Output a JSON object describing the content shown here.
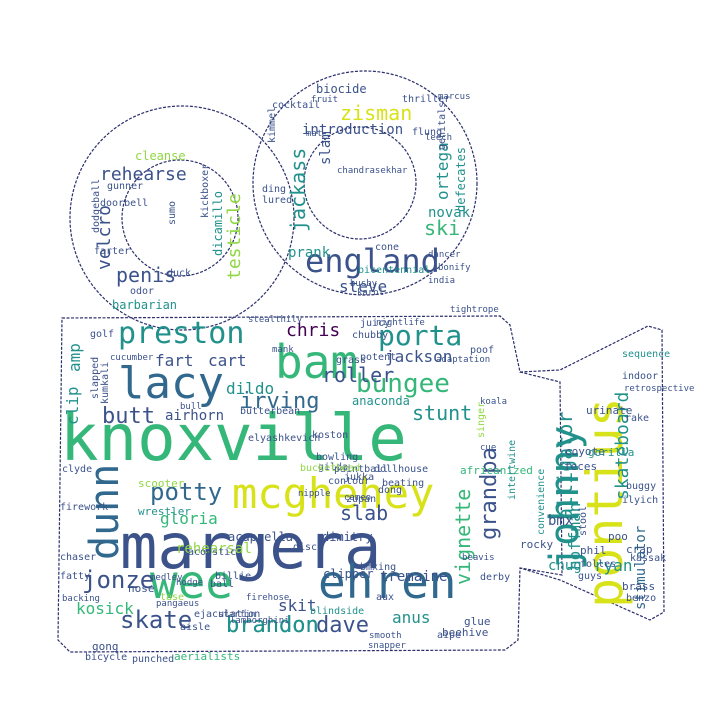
{
  "palette": {
    "purple": "#440154",
    "indigo": "#3b528b",
    "blue": "#31688e",
    "teal": "#21918c",
    "green": "#35b779",
    "lime": "#90d743",
    "yellow": "#d8e219",
    "outline": "#2b2f6b"
  },
  "shape": "movie-camera",
  "words": [
    {
      "text": "knoxville",
      "color": "green"
    },
    {
      "text": "margera",
      "color": "indigo"
    },
    {
      "text": "bam",
      "color": "green"
    },
    {
      "text": "wee",
      "color": "green"
    },
    {
      "text": "ehren",
      "color": "blue"
    },
    {
      "text": "mcghehey",
      "color": "yellow"
    },
    {
      "text": "pontius",
      "color": "yellow"
    },
    {
      "text": "johnny",
      "color": "teal"
    },
    {
      "text": "lacy",
      "color": "blue"
    },
    {
      "text": "dunn",
      "color": "blue"
    },
    {
      "text": "preston",
      "color": "teal"
    },
    {
      "text": "england",
      "color": "indigo"
    },
    {
      "text": "porta",
      "color": "teal"
    },
    {
      "text": "bungee",
      "color": "green"
    },
    {
      "text": "potty",
      "color": "blue"
    },
    {
      "text": "irving",
      "color": "blue"
    },
    {
      "text": "skate",
      "color": "indigo"
    },
    {
      "text": "brandon",
      "color": "teal"
    },
    {
      "text": "dave",
      "color": "indigo"
    },
    {
      "text": "jonze",
      "color": "indigo"
    },
    {
      "text": "zisman",
      "color": "yellow"
    },
    {
      "text": "jackass",
      "color": "teal"
    },
    {
      "text": "ski",
      "color": "green"
    },
    {
      "text": "steve",
      "color": "indigo"
    },
    {
      "text": "alligator",
      "color": "teal"
    },
    {
      "text": "grandpa",
      "color": "indigo"
    },
    {
      "text": "skateboard",
      "color": "teal"
    },
    {
      "text": "vignette",
      "color": "green"
    },
    {
      "text": "butt",
      "color": "indigo"
    },
    {
      "text": "chris",
      "color": "purple"
    },
    {
      "text": "fart",
      "color": "indigo"
    },
    {
      "text": "cart",
      "color": "indigo"
    },
    {
      "text": "rehearse",
      "color": "indigo"
    },
    {
      "text": "penis",
      "color": "indigo"
    },
    {
      "text": "velcro",
      "color": "indigo"
    },
    {
      "text": "testicle",
      "color": "lime"
    },
    {
      "text": "stunt",
      "color": "teal"
    },
    {
      "text": "slab",
      "color": "indigo"
    },
    {
      "text": "gloria",
      "color": "green"
    },
    {
      "text": "kosick",
      "color": "green"
    },
    {
      "text": "skit",
      "color": "indigo"
    },
    {
      "text": "hoffman",
      "color": "teal"
    },
    {
      "text": "stimulator",
      "color": "blue"
    },
    {
      "text": "bmx",
      "color": "indigo"
    },
    {
      "text": "roller",
      "color": "indigo"
    },
    {
      "text": "jackson",
      "color": "indigo"
    },
    {
      "text": "airhorn",
      "color": "indigo"
    },
    {
      "text": "dildo",
      "color": "teal"
    },
    {
      "text": "amp",
      "color": "teal"
    },
    {
      "text": "clip",
      "color": "teal"
    },
    {
      "text": "tremaine",
      "color": "indigo"
    },
    {
      "text": "anus",
      "color": "teal"
    },
    {
      "text": "rehearsal",
      "color": "lime"
    },
    {
      "text": "chug",
      "color": "teal"
    },
    {
      "text": "ryan",
      "color": "teal"
    },
    {
      "text": "prank",
      "color": "teal"
    },
    {
      "text": "novak",
      "color": "teal"
    },
    {
      "text": "ortega",
      "color": "teal"
    },
    {
      "text": "slam",
      "color": "indigo"
    },
    {
      "text": "introduction",
      "color": "indigo"
    },
    {
      "text": "biocide",
      "color": "indigo"
    },
    {
      "text": "thriller",
      "color": "indigo"
    },
    {
      "text": "defecates",
      "color": "teal"
    },
    {
      "text": "dicamillo",
      "color": "teal"
    },
    {
      "text": "barbarian",
      "color": "teal"
    },
    {
      "text": "cleanse",
      "color": "lime"
    },
    {
      "text": "anaconda",
      "color": "teal"
    },
    {
      "text": "acappella",
      "color": "indigo"
    },
    {
      "text": "dimitry",
      "color": "indigo"
    },
    {
      "text": "clipper",
      "color": "indigo"
    },
    {
      "text": "brandon",
      "color": "teal"
    },
    {
      "text": "coyote",
      "color": "indigo"
    },
    {
      "text": "feces",
      "color": "indigo"
    },
    {
      "text": "gorilla",
      "color": "teal"
    },
    {
      "text": "urinate",
      "color": "indigo"
    },
    {
      "text": "koala",
      "color": "indigo"
    },
    {
      "text": "sequence",
      "color": "teal"
    },
    {
      "text": "indoor",
      "color": "indigo"
    },
    {
      "text": "buggy",
      "color": "indigo"
    },
    {
      "text": "phil",
      "color": "indigo"
    },
    {
      "text": "rocky",
      "color": "indigo"
    },
    {
      "text": "beavis",
      "color": "indigo"
    },
    {
      "text": "derby",
      "color": "indigo"
    },
    {
      "text": "beehive",
      "color": "indigo"
    },
    {
      "text": "blindside",
      "color": "teal"
    },
    {
      "text": "aux",
      "color": "indigo"
    },
    {
      "text": "bmxing",
      "color": "indigo"
    },
    {
      "text": "zupan",
      "color": "indigo"
    },
    {
      "text": "jukka",
      "color": "indigo"
    },
    {
      "text": "gilda",
      "color": "indigo"
    },
    {
      "text": "koston",
      "color": "indigo"
    },
    {
      "text": "bowling",
      "color": "indigo"
    },
    {
      "text": "contour",
      "color": "indigo"
    },
    {
      "text": "nipple",
      "color": "indigo"
    },
    {
      "text": "cameo",
      "color": "indigo"
    },
    {
      "text": "dong",
      "color": "indigo"
    },
    {
      "text": "beating",
      "color": "indigo"
    },
    {
      "text": "paintball",
      "color": "indigo"
    },
    {
      "text": "dollhouse",
      "color": "indigo"
    },
    {
      "text": "africanized",
      "color": "green"
    },
    {
      "text": "buckethead",
      "color": "lime"
    },
    {
      "text": "scooter",
      "color": "lime"
    },
    {
      "text": "acoustic",
      "color": "indigo"
    },
    {
      "text": "wrestler",
      "color": "teal"
    },
    {
      "text": "firehose",
      "color": "indigo"
    },
    {
      "text": "disco",
      "color": "indigo"
    },
    {
      "text": "ball",
      "color": "indigo"
    },
    {
      "text": "billie",
      "color": "indigo"
    },
    {
      "text": "ejaculation",
      "color": "indigo"
    },
    {
      "text": "aisle",
      "color": "indigo"
    },
    {
      "text": "gong",
      "color": "indigo"
    },
    {
      "text": "bicycle",
      "color": "indigo"
    },
    {
      "text": "punched",
      "color": "indigo"
    },
    {
      "text": "aerialists",
      "color": "green"
    },
    {
      "text": "tase",
      "color": "lime"
    },
    {
      "text": "hose",
      "color": "indigo"
    },
    {
      "text": "fatty",
      "color": "indigo"
    },
    {
      "text": "backing",
      "color": "indigo"
    },
    {
      "text": "chaser",
      "color": "indigo"
    },
    {
      "text": "firework",
      "color": "indigo"
    },
    {
      "text": "clyde",
      "color": "indigo"
    },
    {
      "text": "golf",
      "color": "indigo"
    },
    {
      "text": "cucumber",
      "color": "indigo"
    },
    {
      "text": "elyashkevich",
      "color": "indigo"
    },
    {
      "text": "butterbean",
      "color": "indigo"
    },
    {
      "text": "bull",
      "color": "indigo"
    },
    {
      "text": "kumkali",
      "color": "indigo"
    },
    {
      "text": "slapped",
      "color": "indigo"
    },
    {
      "text": "chubby",
      "color": "indigo"
    },
    {
      "text": "grass",
      "color": "indigo"
    },
    {
      "text": "adaptation",
      "color": "indigo"
    },
    {
      "text": "poof",
      "color": "indigo"
    },
    {
      "text": "juicy",
      "color": "indigo"
    },
    {
      "text": "nightlife",
      "color": "indigo"
    },
    {
      "text": "sumo",
      "color": "indigo"
    },
    {
      "text": "duck",
      "color": "indigo"
    },
    {
      "text": "odor",
      "color": "indigo"
    },
    {
      "text": "farter",
      "color": "indigo"
    },
    {
      "text": "dodgeball",
      "color": "indigo"
    },
    {
      "text": "gunner",
      "color": "indigo"
    },
    {
      "text": "doorbell",
      "color": "indigo"
    },
    {
      "text": "kickboxer",
      "color": "indigo"
    },
    {
      "text": "bonify",
      "color": "indigo"
    },
    {
      "text": "dancer",
      "color": "indigo"
    },
    {
      "text": "india",
      "color": "indigo"
    },
    {
      "text": "karol",
      "color": "indigo"
    },
    {
      "text": "busby",
      "color": "indigo"
    },
    {
      "text": "bicentennial",
      "color": "teal"
    },
    {
      "text": "cone",
      "color": "indigo"
    },
    {
      "text": "chandrasekhar",
      "color": "indigo"
    },
    {
      "text": "kimmel",
      "color": "indigo"
    },
    {
      "text": "mat",
      "color": "indigo"
    },
    {
      "text": "fruit",
      "color": "indigo"
    },
    {
      "text": "cocktail",
      "color": "indigo"
    },
    {
      "text": "flung",
      "color": "indigo"
    },
    {
      "text": "leech",
      "color": "indigo"
    },
    {
      "text": "genitals",
      "color": "indigo"
    },
    {
      "text": "marcus",
      "color": "indigo"
    },
    {
      "text": "ding",
      "color": "indigo"
    },
    {
      "text": "lured",
      "color": "indigo"
    },
    {
      "text": "convenience",
      "color": "teal"
    },
    {
      "text": "intertwine",
      "color": "teal"
    },
    {
      "text": "singer",
      "color": "lime"
    },
    {
      "text": "retrospective",
      "color": "indigo"
    },
    {
      "text": "ilyich",
      "color": "indigo"
    },
    {
      "text": "crap",
      "color": "indigo"
    },
    {
      "text": "benzo",
      "color": "indigo"
    },
    {
      "text": "brass",
      "color": "indigo"
    },
    {
      "text": "folles",
      "color": "indigo"
    },
    {
      "text": "guys",
      "color": "indigo"
    },
    {
      "text": "stool",
      "color": "indigo"
    },
    {
      "text": "poo",
      "color": "indigo"
    },
    {
      "text": "glue",
      "color": "indigo"
    },
    {
      "text": "rake",
      "color": "indigo"
    },
    {
      "text": "kassak",
      "color": "indigo"
    },
    {
      "text": "aipe",
      "color": "indigo"
    },
    {
      "text": "smooth",
      "color": "indigo"
    },
    {
      "text": "snapper",
      "color": "indigo"
    },
    {
      "text": "starfin",
      "color": "indigo"
    },
    {
      "text": "lamborghini",
      "color": "indigo"
    },
    {
      "text": "stealthily",
      "color": "indigo"
    },
    {
      "text": "tightrope",
      "color": "indigo"
    },
    {
      "text": "mank",
      "color": "indigo"
    },
    {
      "text": "cue",
      "color": "indigo"
    },
    {
      "text": "pangaeus",
      "color": "indigo"
    },
    {
      "text": "hodge",
      "color": "indigo"
    },
    {
      "text": "medley",
      "color": "indigo"
    },
    {
      "text": "potent",
      "color": "indigo"
    }
  ]
}
